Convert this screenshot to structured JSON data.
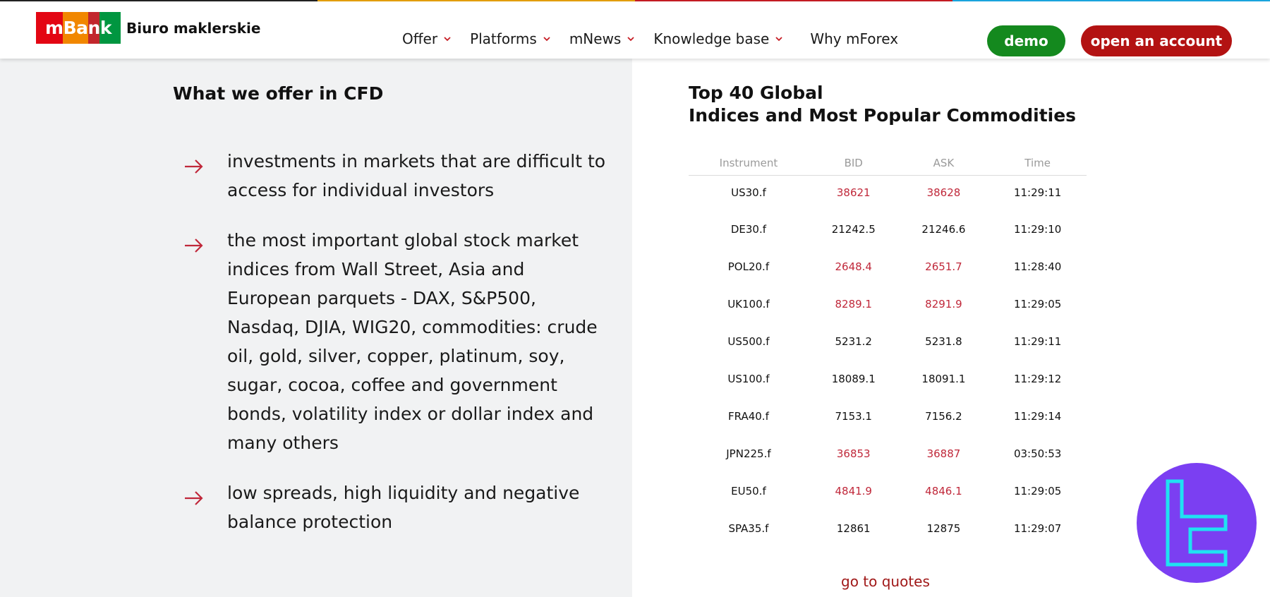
{
  "colors": {
    "stripe": [
      "#222222",
      "#e6a000",
      "#c61c24",
      "#1aa7e0"
    ],
    "logo_stripes": [
      "#e30613",
      "#e30613",
      "#f18700",
      "#f18700",
      "#c2272d",
      "#009640",
      "#009640"
    ],
    "demo": "#14891e",
    "open_account": "#b31212",
    "red_value": "#c0283a",
    "badge": "#7b3ff2",
    "badge_stroke": "#1fe2f2",
    "arrow": "#c0283a"
  },
  "header": {
    "logo_text": "mBank",
    "logo_sub": "Biuro maklerskie",
    "nav": [
      {
        "label": "Offer",
        "has_dropdown": true
      },
      {
        "label": "Platforms",
        "has_dropdown": true
      },
      {
        "label": "mNews",
        "has_dropdown": true
      },
      {
        "label": "Knowledge base",
        "has_dropdown": true
      },
      {
        "label": "Why mForex",
        "has_dropdown": false
      }
    ],
    "demo_label": "demo",
    "open_account_label": "open an account"
  },
  "offer": {
    "title": "What we offer in CFD",
    "items": [
      "investments in markets that are difficult to access for individual investors",
      "the most important global stock market indices from Wall Street, Asia and European parquets - DAX, S&P500, Nasdaq, DJIA, WIG20, commodities: crude oil, gold, silver, copper, platinum, soy, sugar, cocoa, coffee and government bonds, volatility index or dollar index and many others",
      "low spreads, high liquidity and negative balance protection"
    ]
  },
  "quotes": {
    "title_line1": "Top 40 Global",
    "title_line2": "Indices and Most Popular Commodities",
    "columns": [
      "Instrument",
      "BID",
      "ASK",
      "Time"
    ],
    "rows": [
      {
        "instrument": "US30.f",
        "bid": "38621",
        "ask": "38628",
        "time": "11:29:11",
        "red": true
      },
      {
        "instrument": "DE30.f",
        "bid": "21242.5",
        "ask": "21246.6",
        "time": "11:29:10",
        "red": false
      },
      {
        "instrument": "POL20.f",
        "bid": "2648.4",
        "ask": "2651.7",
        "time": "11:28:40",
        "red": true
      },
      {
        "instrument": "UK100.f",
        "bid": "8289.1",
        "ask": "8291.9",
        "time": "11:29:05",
        "red": true
      },
      {
        "instrument": "US500.f",
        "bid": "5231.2",
        "ask": "5231.8",
        "time": "11:29:11",
        "red": false
      },
      {
        "instrument": "US100.f",
        "bid": "18089.1",
        "ask": "18091.1",
        "time": "11:29:12",
        "red": false
      },
      {
        "instrument": "FRA40.f",
        "bid": "7153.1",
        "ask": "7156.2",
        "time": "11:29:14",
        "red": false
      },
      {
        "instrument": "JPN225.f",
        "bid": "36853",
        "ask": "36887",
        "time": "03:50:53",
        "red": true
      },
      {
        "instrument": "EU50.f",
        "bid": "4841.9",
        "ask": "4846.1",
        "time": "11:29:05",
        "red": true
      },
      {
        "instrument": "SPA35.f",
        "bid": "12861",
        "ask": "12875",
        "time": "11:29:07",
        "red": false
      }
    ],
    "go_label": "go to quotes"
  }
}
